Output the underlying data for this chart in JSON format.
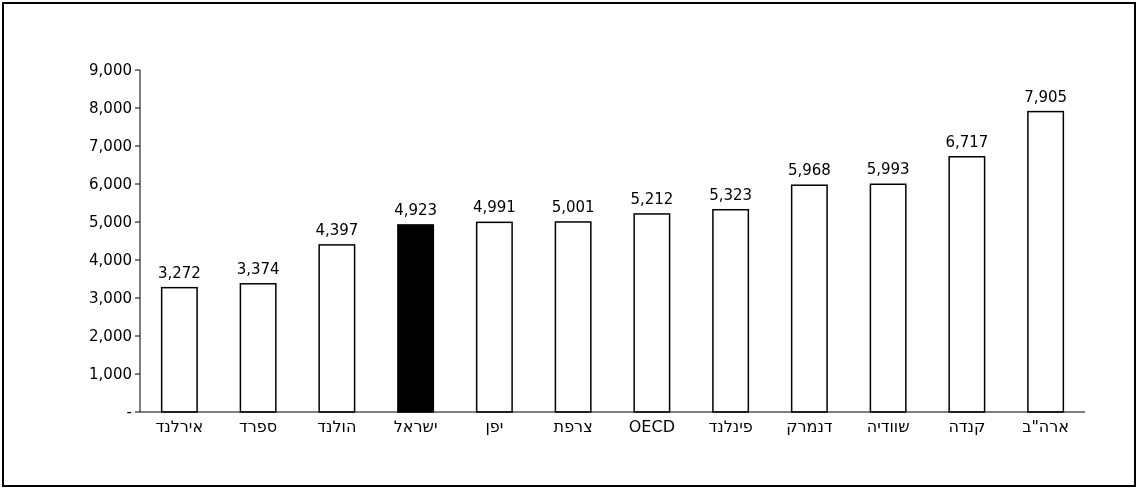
{
  "chart_data": {
    "type": "bar",
    "categories": [
      "אירלנד",
      "ספרד",
      "הולנד",
      "ישראל",
      "יפן",
      "צרפת",
      "OECD",
      "פינלנד",
      "דנמרק",
      "שוודיה",
      "קנדה",
      "ארה\"ב"
    ],
    "values": [
      3272,
      3374,
      4397,
      4923,
      4991,
      5001,
      5212,
      5323,
      5968,
      5993,
      6717,
      7905
    ],
    "colors": [
      "#ffffff",
      "#ffffff",
      "#ffffff",
      "#000000",
      "#ffffff",
      "#ffffff",
      "#ffffff",
      "#ffffff",
      "#ffffff",
      "#ffffff",
      "#ffffff",
      "#ffffff"
    ],
    "value_labels": [
      "3,272",
      "3,374",
      "4,397",
      "4,923",
      "4,991",
      "5,001",
      "5,212",
      "5,323",
      "5,968",
      "5,993",
      "6,717",
      "7,905"
    ],
    "ylim": [
      0,
      9000
    ],
    "yticks": [
      {
        "value": 0,
        "label": "-"
      },
      {
        "value": 1000,
        "label": "1,000"
      },
      {
        "value": 2000,
        "label": "2,000"
      },
      {
        "value": 3000,
        "label": "3,000"
      },
      {
        "value": 4000,
        "label": "4,000"
      },
      {
        "value": 5000,
        "label": "5,000"
      },
      {
        "value": 6000,
        "label": "6,000"
      },
      {
        "value": 7000,
        "label": "7,000"
      },
      {
        "value": 8000,
        "label": "8,000"
      },
      {
        "value": 9000,
        "label": "9,000"
      }
    ],
    "grid": false
  }
}
